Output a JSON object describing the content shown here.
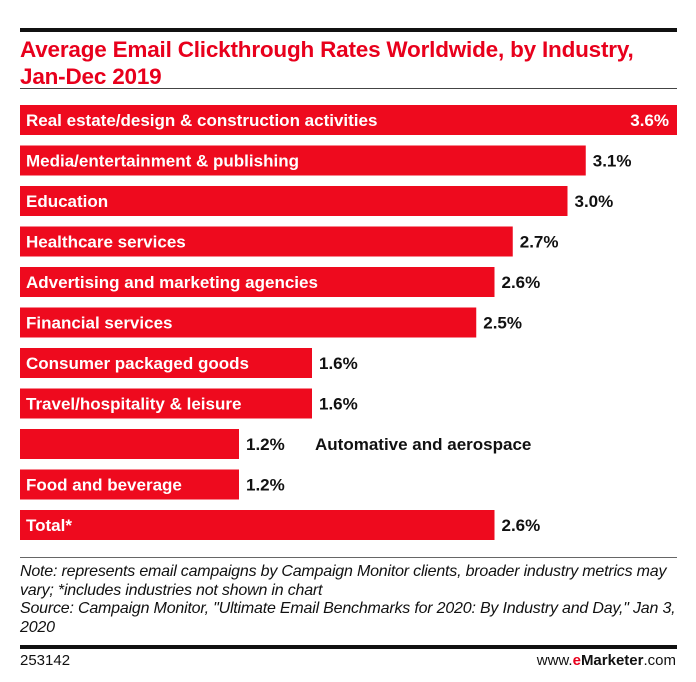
{
  "chart_data": {
    "type": "bar",
    "orientation": "horizontal",
    "title": "Average Email Clickthrough Rates Worldwide, by Industry, Jan-Dec 2019",
    "categories": [
      "Real estate/design & construction activities",
      "Media/entertainment & publishing",
      "Education",
      "Healthcare services",
      "Advertising and marketing agencies",
      "Financial services",
      "Consumer packaged goods",
      "Travel/hospitality & leisure",
      "Automative and aerospace",
      "Food and beverage",
      "Total*"
    ],
    "values": [
      3.6,
      3.1,
      3.0,
      2.7,
      2.6,
      2.5,
      1.6,
      1.6,
      1.2,
      1.2,
      2.6
    ],
    "value_labels": [
      "3.6%",
      "3.1%",
      "3.0%",
      "2.7%",
      "2.6%",
      "2.5%",
      "1.6%",
      "1.6%",
      "1.2%",
      "1.2%",
      "2.6%"
    ],
    "xlabel": "",
    "ylabel": "",
    "xlim": [
      0,
      3.6
    ],
    "grid": false,
    "bar_color": "#ee0a1e"
  },
  "footer": {
    "note": "Note: represents email campaigns by Campaign Monitor clients, broader industry metrics may vary; *includes industries not shown in chart",
    "source": "Source: Campaign Monitor, \"Ultimate Email Benchmarks for 2020: By Industry and Day,\" Jan 3, 2020",
    "chart_id": "253142",
    "site_prefix": "www.",
    "site_e": "e",
    "site_brand": "Marketer",
    "site_suffix": ".com"
  }
}
